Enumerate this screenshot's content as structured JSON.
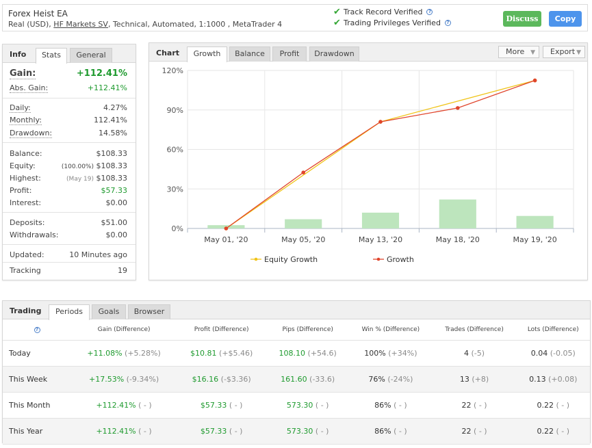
{
  "header": {
    "title": "Forex Heist EA",
    "account_type": "Real (USD),",
    "broker": "HF Markets SV",
    "details": ", Technical, Automated, 1:1000 , MetaTrader 4",
    "verif_track": "Track Record Verified",
    "verif_priv": "Trading Privileges Verified",
    "discuss_label": "Discuss",
    "copy_label": "Copy"
  },
  "info": {
    "title": "Info",
    "tabs": [
      "Stats",
      "General"
    ],
    "gain_label": "Gain:",
    "gain_value": "+112.41%",
    "abs_gain_label": "Abs. Gain:",
    "abs_gain_value": "+112.41%",
    "daily_label": "Daily:",
    "daily_value": "4.27%",
    "monthly_label": "Monthly:",
    "monthly_value": "112.41%",
    "drawdown_label": "Drawdown:",
    "drawdown_value": "14.58%",
    "balance_label": "Balance:",
    "balance_value": "$108.33",
    "equity_label": "Equity:",
    "equity_pct": "(100.00%)",
    "equity_value": "$108.33",
    "highest_label": "Highest:",
    "highest_date": "(May 19)",
    "highest_value": "$108.33",
    "profit_label": "Profit:",
    "profit_value": "$57.33",
    "interest_label": "Interest:",
    "interest_value": "$0.00",
    "deposits_label": "Deposits:",
    "deposits_value": "$51.00",
    "withdrawals_label": "Withdrawals:",
    "withdrawals_value": "$0.00",
    "updated_label": "Updated:",
    "updated_value": "10 Minutes ago",
    "tracking_label": "Tracking",
    "tracking_value": "19"
  },
  "chart_panel": {
    "title": "Chart",
    "tabs": [
      "Growth",
      "Balance",
      "Profit",
      "Drawdown"
    ],
    "more_label": "More",
    "export_label": "Export"
  },
  "chart_data": {
    "type": "line",
    "categories": [
      "May 01, '20",
      "May 05, '20",
      "May 13, '20",
      "May 18, '20",
      "May 19, '20"
    ],
    "y_ticks": [
      "120%",
      "90%",
      "60%",
      "30%",
      "0%"
    ],
    "ylim": [
      0,
      120
    ],
    "grid": true,
    "legend_position": "bottom",
    "series": [
      {
        "name": "Equity Growth",
        "color": "#f0c419",
        "x": [
          0,
          2,
          4
        ],
        "values": [
          0,
          81,
          112.41
        ]
      },
      {
        "name": "Growth",
        "color": "#e0452c",
        "x": [
          0,
          1,
          2,
          3,
          4
        ],
        "values": [
          0,
          42.5,
          81,
          91.5,
          112.41
        ]
      }
    ],
    "bars": {
      "color": "#bde5bd",
      "values": [
        2.5,
        7,
        12,
        22,
        9.5
      ]
    }
  },
  "trading": {
    "title": "Trading",
    "tabs": [
      "Periods",
      "Goals",
      "Browser"
    ],
    "columns": [
      "Gain (Difference)",
      "Profit (Difference)",
      "Pips (Difference)",
      "Win % (Difference)",
      "Trades (Difference)",
      "Lots (Difference)"
    ],
    "rows": [
      {
        "period": "Today",
        "gain": "+11.08%",
        "gain_diff": "(+5.28%)",
        "profit": "$10.81",
        "profit_diff": "(+$5.46)",
        "pips": "108.10",
        "pips_diff": "(+54.6)",
        "win": "100%",
        "win_diff": "(+34%)",
        "trades": "4",
        "trades_diff": "(-5)",
        "lots": "0.04",
        "lots_diff": "(-0.05)"
      },
      {
        "period": "This Week",
        "gain": "+17.53%",
        "gain_diff": "(-9.34%)",
        "profit": "$16.16",
        "profit_diff": "(-$3.36)",
        "pips": "161.60",
        "pips_diff": "(-33.6)",
        "win": "76%",
        "win_diff": "(-24%)",
        "trades": "13",
        "trades_diff": "(+8)",
        "lots": "0.13",
        "lots_diff": "(+0.08)"
      },
      {
        "period": "This Month",
        "gain": "+112.41%",
        "gain_diff": "( - )",
        "profit": "$57.33",
        "profit_diff": "( - )",
        "pips": "573.30",
        "pips_diff": "( - )",
        "win": "86%",
        "win_diff": "( - )",
        "trades": "22",
        "trades_diff": "( - )",
        "lots": "0.22",
        "lots_diff": "( - )"
      },
      {
        "period": "This Year",
        "gain": "+112.41%",
        "gain_diff": "( - )",
        "profit": "$57.33",
        "profit_diff": "( - )",
        "pips": "573.30",
        "pips_diff": "( - )",
        "win": "86%",
        "win_diff": "( - )",
        "trades": "22",
        "trades_diff": "( - )",
        "lots": "0.22",
        "lots_diff": "( - )"
      }
    ]
  }
}
